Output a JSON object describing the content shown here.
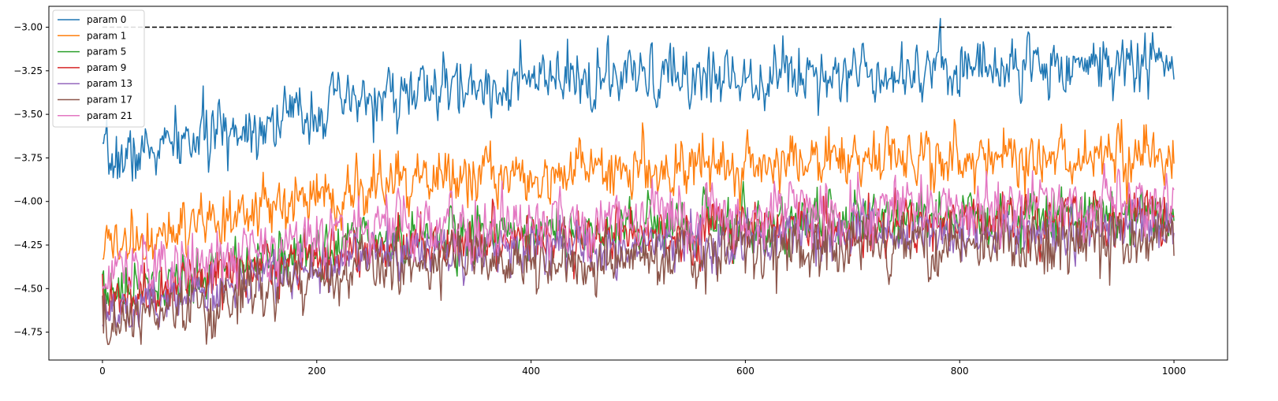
{
  "chart_data": {
    "type": "line",
    "title": "",
    "xlabel": "",
    "ylabel": "",
    "xlim": [
      -50,
      1050
    ],
    "ylim": [
      -4.91,
      -2.88
    ],
    "xticks": [
      0,
      200,
      400,
      600,
      800,
      1000
    ],
    "xtick_labels": [
      "0",
      "200",
      "400",
      "600",
      "800",
      "1000"
    ],
    "yticks": [
      -3.0,
      -3.25,
      -3.5,
      -3.75,
      -4.0,
      -4.25,
      -4.5,
      -4.75
    ],
    "ytick_labels": [
      "−3.00",
      "−3.25",
      "−3.50",
      "−3.75",
      "−4.00",
      "−4.25",
      "−4.50",
      "−4.75"
    ],
    "grid": false,
    "legend_position": "upper-left",
    "reference_line": {
      "y": -3.0,
      "x_range": [
        0,
        1000
      ],
      "color": "#000000",
      "style": "dashed"
    },
    "x": {
      "start": 0,
      "end": 1000,
      "count": 1001
    },
    "noise_seed": 7,
    "series": [
      {
        "name": "param 0",
        "color": "#1f77b4",
        "trend": [
          [
            0,
            -3.78
          ],
          [
            100,
            -3.62
          ],
          [
            200,
            -3.47
          ],
          [
            300,
            -3.37
          ],
          [
            400,
            -3.32
          ],
          [
            500,
            -3.3
          ],
          [
            600,
            -3.27
          ],
          [
            700,
            -3.25
          ],
          [
            800,
            -3.23
          ],
          [
            900,
            -3.21
          ],
          [
            1000,
            -3.2
          ]
        ],
        "noise": 0.085,
        "min": -3.9,
        "max": -2.95
      },
      {
        "name": "param 1",
        "color": "#ff7f0e",
        "trend": [
          [
            0,
            -4.28
          ],
          [
            100,
            -4.15
          ],
          [
            200,
            -3.97
          ],
          [
            300,
            -3.87
          ],
          [
            400,
            -3.84
          ],
          [
            500,
            -3.8
          ],
          [
            600,
            -3.78
          ],
          [
            700,
            -3.76
          ],
          [
            800,
            -3.75
          ],
          [
            900,
            -3.74
          ],
          [
            1000,
            -3.74
          ]
        ],
        "noise": 0.085,
        "min": -4.33,
        "max": -3.53
      },
      {
        "name": "param 5",
        "color": "#2ca02c",
        "trend": [
          [
            0,
            -4.55
          ],
          [
            100,
            -4.4
          ],
          [
            200,
            -4.27
          ],
          [
            300,
            -4.2
          ],
          [
            400,
            -4.18
          ],
          [
            500,
            -4.15
          ],
          [
            600,
            -4.13
          ],
          [
            700,
            -4.11
          ],
          [
            800,
            -4.09
          ],
          [
            900,
            -4.07
          ],
          [
            1000,
            -4.05
          ]
        ],
        "noise": 0.075,
        "min": -4.6,
        "max": -3.88
      },
      {
        "name": "param 9",
        "color": "#d62728",
        "trend": [
          [
            0,
            -4.6
          ],
          [
            100,
            -4.45
          ],
          [
            200,
            -4.32
          ],
          [
            300,
            -4.24
          ],
          [
            400,
            -4.21
          ],
          [
            500,
            -4.18
          ],
          [
            600,
            -4.16
          ],
          [
            700,
            -4.13
          ],
          [
            800,
            -4.11
          ],
          [
            900,
            -4.1
          ],
          [
            1000,
            -4.08
          ]
        ],
        "noise": 0.075,
        "min": -4.65,
        "max": -3.9
      },
      {
        "name": "param 13",
        "color": "#9467bd",
        "trend": [
          [
            0,
            -4.66
          ],
          [
            100,
            -4.5
          ],
          [
            200,
            -4.37
          ],
          [
            300,
            -4.29
          ],
          [
            400,
            -4.27
          ],
          [
            500,
            -4.24
          ],
          [
            600,
            -4.21
          ],
          [
            700,
            -4.19
          ],
          [
            800,
            -4.18
          ],
          [
            900,
            -4.16
          ],
          [
            1000,
            -4.15
          ]
        ],
        "noise": 0.075,
        "min": -4.72,
        "max": -3.95
      },
      {
        "name": "param 17",
        "color": "#8c564b",
        "trend": [
          [
            0,
            -4.72
          ],
          [
            100,
            -4.6
          ],
          [
            200,
            -4.45
          ],
          [
            300,
            -4.37
          ],
          [
            400,
            -4.34
          ],
          [
            500,
            -4.31
          ],
          [
            600,
            -4.28
          ],
          [
            700,
            -4.26
          ],
          [
            800,
            -4.24
          ],
          [
            900,
            -4.22
          ],
          [
            1000,
            -4.2
          ]
        ],
        "noise": 0.09,
        "min": -4.82,
        "max": -3.98
      },
      {
        "name": "param 21",
        "color": "#e377c2",
        "trend": [
          [
            0,
            -4.45
          ],
          [
            100,
            -4.35
          ],
          [
            200,
            -4.22
          ],
          [
            300,
            -4.15
          ],
          [
            400,
            -4.12
          ],
          [
            500,
            -4.1
          ],
          [
            600,
            -4.07
          ],
          [
            700,
            -4.05
          ],
          [
            800,
            -4.03
          ],
          [
            900,
            -4.01
          ],
          [
            1000,
            -4.0
          ]
        ],
        "noise": 0.09,
        "min": -4.5,
        "max": -3.78
      }
    ]
  }
}
